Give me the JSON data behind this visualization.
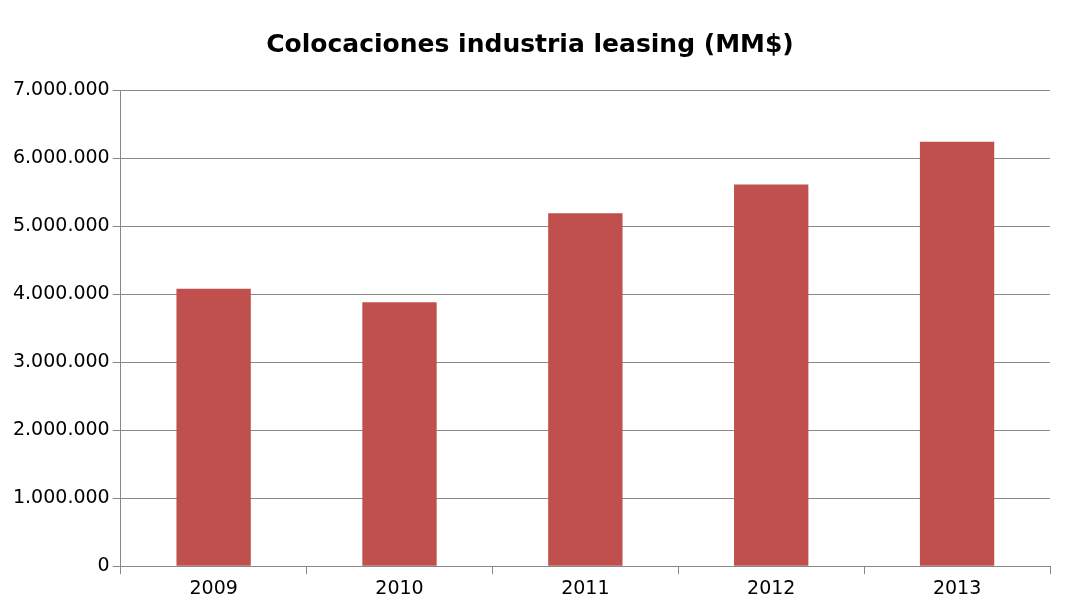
{
  "chart_data": {
    "type": "bar",
    "title": "Colocaciones industria leasing (MM$)",
    "categories": [
      "2009",
      "2010",
      "2011",
      "2012",
      "2013"
    ],
    "values": [
      4080000,
      3880000,
      5190000,
      5610000,
      6240000
    ],
    "color": "#c0504d",
    "ylim": [
      0,
      7000000
    ],
    "yticks": [
      0,
      {
        "value": 1000000,
        "label": "1.000.000"
      },
      {
        "value": 2000000,
        "label": "2.000.000"
      },
      {
        "value": 3000000,
        "label": "3.000.000"
      },
      {
        "value": 4000000,
        "label": "4.000.000"
      },
      {
        "value": 5000000,
        "label": "5.000.000"
      },
      {
        "value": 6000000,
        "label": "6.000.000"
      },
      {
        "value": 7000000,
        "label": "7.000.000"
      }
    ],
    "grid": "y"
  }
}
